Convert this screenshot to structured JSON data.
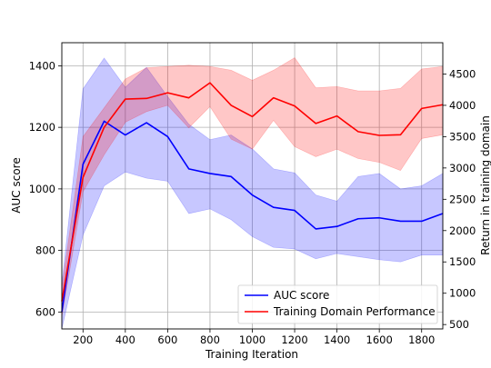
{
  "chart_data": {
    "type": "line",
    "x": [
      100,
      200,
      300,
      400,
      500,
      600,
      700,
      800,
      900,
      1000,
      1100,
      1200,
      1300,
      1400,
      1500,
      1600,
      1700,
      1800,
      1900
    ],
    "xlabel": "Training Iteration",
    "xlim": [
      100,
      1900
    ],
    "xticks": [
      200,
      400,
      600,
      800,
      1000,
      1200,
      1400,
      1600,
      1800
    ],
    "grid": true,
    "legend_placement": "lower-right",
    "left_axis": {
      "label": "AUC score",
      "ylim": [
        545,
        1475
      ],
      "ticks": [
        600,
        800,
        1000,
        1200,
        1400
      ]
    },
    "right_axis": {
      "label": "Return in training domain",
      "ylim": [
        430,
        5000
      ],
      "ticks": [
        500,
        1000,
        1500,
        2000,
        2500,
        3000,
        3500,
        4000,
        4500
      ]
    },
    "series": [
      {
        "name": "AUC score",
        "axis": "left",
        "color": "#0000ff",
        "band_color": "#0000ff",
        "values": [
          600,
          1080,
          1220,
          1175,
          1215,
          1170,
          1065,
          1050,
          1040,
          980,
          940,
          930,
          870,
          878,
          903,
          906,
          895,
          895,
          920
        ],
        "lower": [
          545,
          850,
          1010,
          1055,
          1035,
          1025,
          920,
          935,
          900,
          845,
          810,
          805,
          773,
          790,
          780,
          770,
          763,
          785,
          785
        ],
        "upper": [
          690,
          1325,
          1425,
          1330,
          1395,
          1300,
          1210,
          1160,
          1175,
          1130,
          1065,
          1052,
          980,
          960,
          1040,
          1050,
          1000,
          1010,
          1050
        ]
      },
      {
        "name": "Training Domain Performance",
        "axis": "right",
        "color": "#ff0000",
        "band_color": "#ff0000",
        "values": [
          870,
          2850,
          3650,
          4100,
          4110,
          4200,
          4120,
          4360,
          4000,
          3820,
          4120,
          3990,
          3710,
          3830,
          3580,
          3520,
          3530,
          3950,
          4010
        ],
        "lower": [
          620,
          2620,
          3210,
          3730,
          3900,
          4000,
          3640,
          3980,
          3460,
          3300,
          3760,
          3340,
          3180,
          3300,
          3150,
          3090,
          2960,
          3470,
          3530
        ],
        "upper": [
          1080,
          3500,
          3960,
          4420,
          4600,
          4620,
          4640,
          4620,
          4560,
          4400,
          4560,
          4760,
          4280,
          4300,
          4230,
          4230,
          4270,
          4580,
          4620
        ]
      }
    ]
  }
}
